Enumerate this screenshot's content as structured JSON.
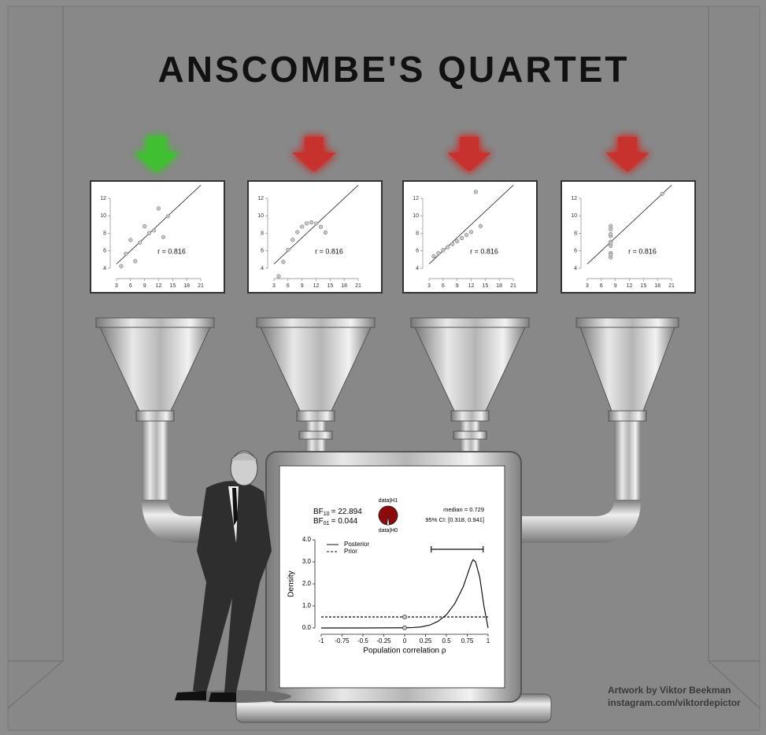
{
  "title": "ANSCOMBE'S QUARTET",
  "credit": [
    "Artwork by Viktor Beekman",
    "instagram.com/viktordepictor"
  ],
  "chart_data": [
    {
      "type": "scatter",
      "arrow_color": "#3fbf32",
      "x": [
        10,
        8,
        13,
        9,
        11,
        14,
        6,
        4,
        12,
        7,
        5
      ],
      "y": [
        8.04,
        6.95,
        7.58,
        8.81,
        8.33,
        9.96,
        7.24,
        4.26,
        10.84,
        4.82,
        5.68
      ],
      "fit": {
        "intercept": 3,
        "slope": 0.5
      },
      "annotation": "r = 0.816",
      "xlim": [
        3,
        21
      ],
      "ylim": [
        4,
        12
      ],
      "xticks": [
        3,
        6,
        9,
        12,
        15,
        18,
        21
      ],
      "yticks": [
        4,
        6,
        8,
        10,
        12
      ]
    },
    {
      "type": "scatter",
      "arrow_color": "#c8302e",
      "x": [
        10,
        8,
        13,
        9,
        11,
        14,
        6,
        4,
        12,
        7,
        5
      ],
      "y": [
        9.14,
        8.14,
        8.74,
        8.77,
        9.26,
        8.1,
        6.13,
        3.1,
        9.13,
        7.26,
        4.74
      ],
      "fit": {
        "intercept": 3,
        "slope": 0.5
      },
      "annotation": "r = 0.816",
      "xlim": [
        3,
        21
      ],
      "ylim": [
        4,
        12
      ],
      "xticks": [
        3,
        6,
        9,
        12,
        15,
        18,
        21
      ],
      "yticks": [
        4,
        6,
        8,
        10,
        12
      ]
    },
    {
      "type": "scatter",
      "arrow_color": "#c8302e",
      "x": [
        10,
        8,
        13,
        9,
        11,
        14,
        6,
        4,
        12,
        7,
        5
      ],
      "y": [
        7.46,
        6.77,
        12.74,
        7.11,
        7.81,
        8.84,
        6.08,
        5.39,
        8.15,
        6.42,
        5.73
      ],
      "fit": {
        "intercept": 3,
        "slope": 0.5
      },
      "annotation": "r = 0.816",
      "xlim": [
        3,
        21
      ],
      "ylim": [
        4,
        12
      ],
      "xticks": [
        3,
        6,
        9,
        12,
        15,
        18,
        21
      ],
      "yticks": [
        4,
        6,
        8,
        10,
        12
      ]
    },
    {
      "type": "scatter",
      "arrow_color": "#c8302e",
      "x": [
        8,
        8,
        8,
        8,
        8,
        8,
        8,
        19,
        8,
        8,
        8
      ],
      "y": [
        6.58,
        5.76,
        7.71,
        8.84,
        8.47,
        7.04,
        5.25,
        12.5,
        5.56,
        7.91,
        6.89
      ],
      "fit": {
        "intercept": 3,
        "slope": 0.5
      },
      "annotation": "r = 0.816",
      "xlim": [
        3,
        21
      ],
      "ylim": [
        4,
        12
      ],
      "xticks": [
        3,
        6,
        9,
        12,
        15,
        18,
        21
      ],
      "yticks": [
        4,
        6,
        8,
        10,
        12
      ]
    },
    {
      "type": "line",
      "bf": [
        {
          "prefix": "BF",
          "sub": "10",
          "text": "= 22.894"
        },
        {
          "prefix": "BF",
          "sub": "01",
          "text": "= 0.044"
        }
      ],
      "pie": {
        "labels": [
          "data|H1",
          "data|H0"
        ],
        "values": [
          95.8,
          4.2
        ],
        "colors": [
          "#8e0a0a",
          "#ffffff"
        ]
      },
      "median": "median = 0.729",
      "ci_label": "95% CI: [0.318, 0.941]",
      "ci": [
        0.318,
        0.941
      ],
      "series": [
        {
          "name": "Posterior",
          "style": "solid",
          "x": [
            -1,
            -0.5,
            0,
            0.1,
            0.2,
            0.3,
            0.4,
            0.5,
            0.6,
            0.7,
            0.75,
            0.8,
            0.82,
            0.85,
            0.9,
            0.95,
            1
          ],
          "values": [
            0,
            0,
            0.01,
            0.02,
            0.05,
            0.13,
            0.3,
            0.6,
            1.1,
            1.85,
            2.4,
            2.95,
            3.1,
            3.0,
            2.3,
            1.0,
            0
          ]
        },
        {
          "name": "Prior",
          "style": "dashed",
          "x": [
            -1,
            1
          ],
          "values": [
            0.5,
            0.5
          ]
        }
      ],
      "xlabel": "Population correlation ρ",
      "ylabel": "Density",
      "xlim": [
        -1,
        1
      ],
      "ylim": [
        0,
        4
      ],
      "xticks": [
        -1,
        -0.75,
        -0.5,
        -0.25,
        0,
        0.25,
        0.5,
        0.75,
        1
      ],
      "yticks": [
        {
          "value": 0,
          "label": "0.0"
        },
        {
          "value": 1,
          "label": "1.0"
        },
        {
          "value": 2,
          "label": "2.0"
        },
        {
          "value": 3,
          "label": "3.0"
        },
        {
          "value": 4,
          "label": "4.0"
        }
      ]
    }
  ]
}
